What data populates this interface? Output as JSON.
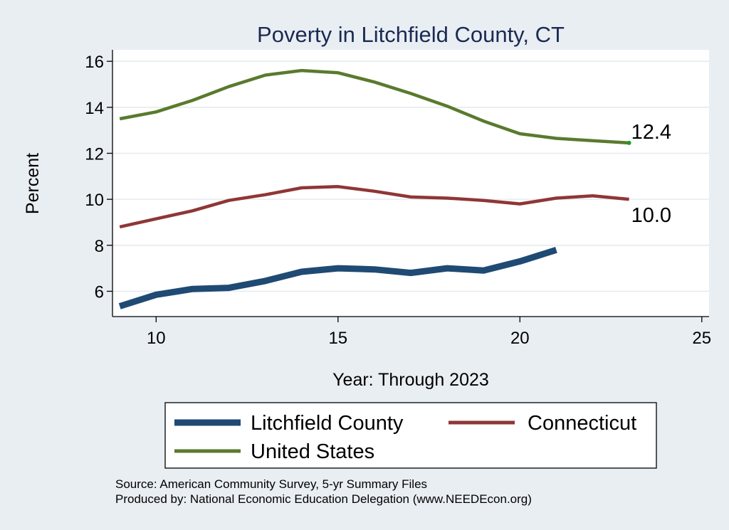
{
  "chart_data": {
    "type": "line",
    "title": "Poverty in Litchfield County, CT",
    "xlabel": "Year: Through 2023",
    "ylabel": "Percent",
    "xlim": [
      8.8,
      25.2
    ],
    "ylim": [
      4.9,
      16.5
    ],
    "xticks": [
      10,
      15,
      20,
      25
    ],
    "yticks": [
      6,
      8,
      10,
      12,
      14,
      16
    ],
    "grid": true,
    "series": [
      {
        "name": "United States",
        "color": "#5a7a2e",
        "x": [
          9,
          10,
          11,
          12,
          13,
          14,
          15,
          16,
          17,
          18,
          19,
          20,
          21,
          22,
          23
        ],
        "values": [
          13.5,
          13.8,
          14.3,
          14.9,
          15.4,
          15.6,
          15.5,
          15.1,
          14.6,
          14.05,
          13.4,
          12.85,
          12.65,
          12.55,
          12.45
        ]
      },
      {
        "name": "Connecticut",
        "color": "#8f3636",
        "x": [
          9,
          10,
          11,
          12,
          13,
          14,
          15,
          16,
          17,
          18,
          19,
          20,
          21,
          22,
          23
        ],
        "values": [
          8.8,
          9.15,
          9.5,
          9.95,
          10.2,
          10.5,
          10.55,
          10.35,
          10.1,
          10.05,
          9.95,
          9.8,
          10.05,
          10.15,
          10.0
        ]
      },
      {
        "name": "Litchfield County",
        "color": "#1f4a73",
        "x": [
          9,
          10,
          11,
          12,
          13,
          14,
          15,
          16,
          17,
          18,
          19,
          20,
          21
        ],
        "values": [
          5.35,
          5.85,
          6.1,
          6.15,
          6.45,
          6.85,
          7.0,
          6.95,
          6.8,
          7.0,
          6.9,
          7.3,
          7.8
        ]
      }
    ],
    "annotations": [
      {
        "text": "12.4",
        "series": "United States",
        "x": 23,
        "y": 12.45
      },
      {
        "text": "10.0",
        "series": "Connecticut",
        "x": 23,
        "y": 10.0
      }
    ],
    "legend": {
      "position": "bottom",
      "entries": [
        {
          "name": "Litchfield County",
          "color": "#1f4a73"
        },
        {
          "name": "Connecticut",
          "color": "#8f3636"
        },
        {
          "name": "United States",
          "color": "#5a7a2e"
        }
      ]
    },
    "notes": [
      "Source: American Community Survey, 5-yr Summary Files",
      "Produced by: National Economic Education Delegation (www.NEEDEcon.org)"
    ]
  }
}
